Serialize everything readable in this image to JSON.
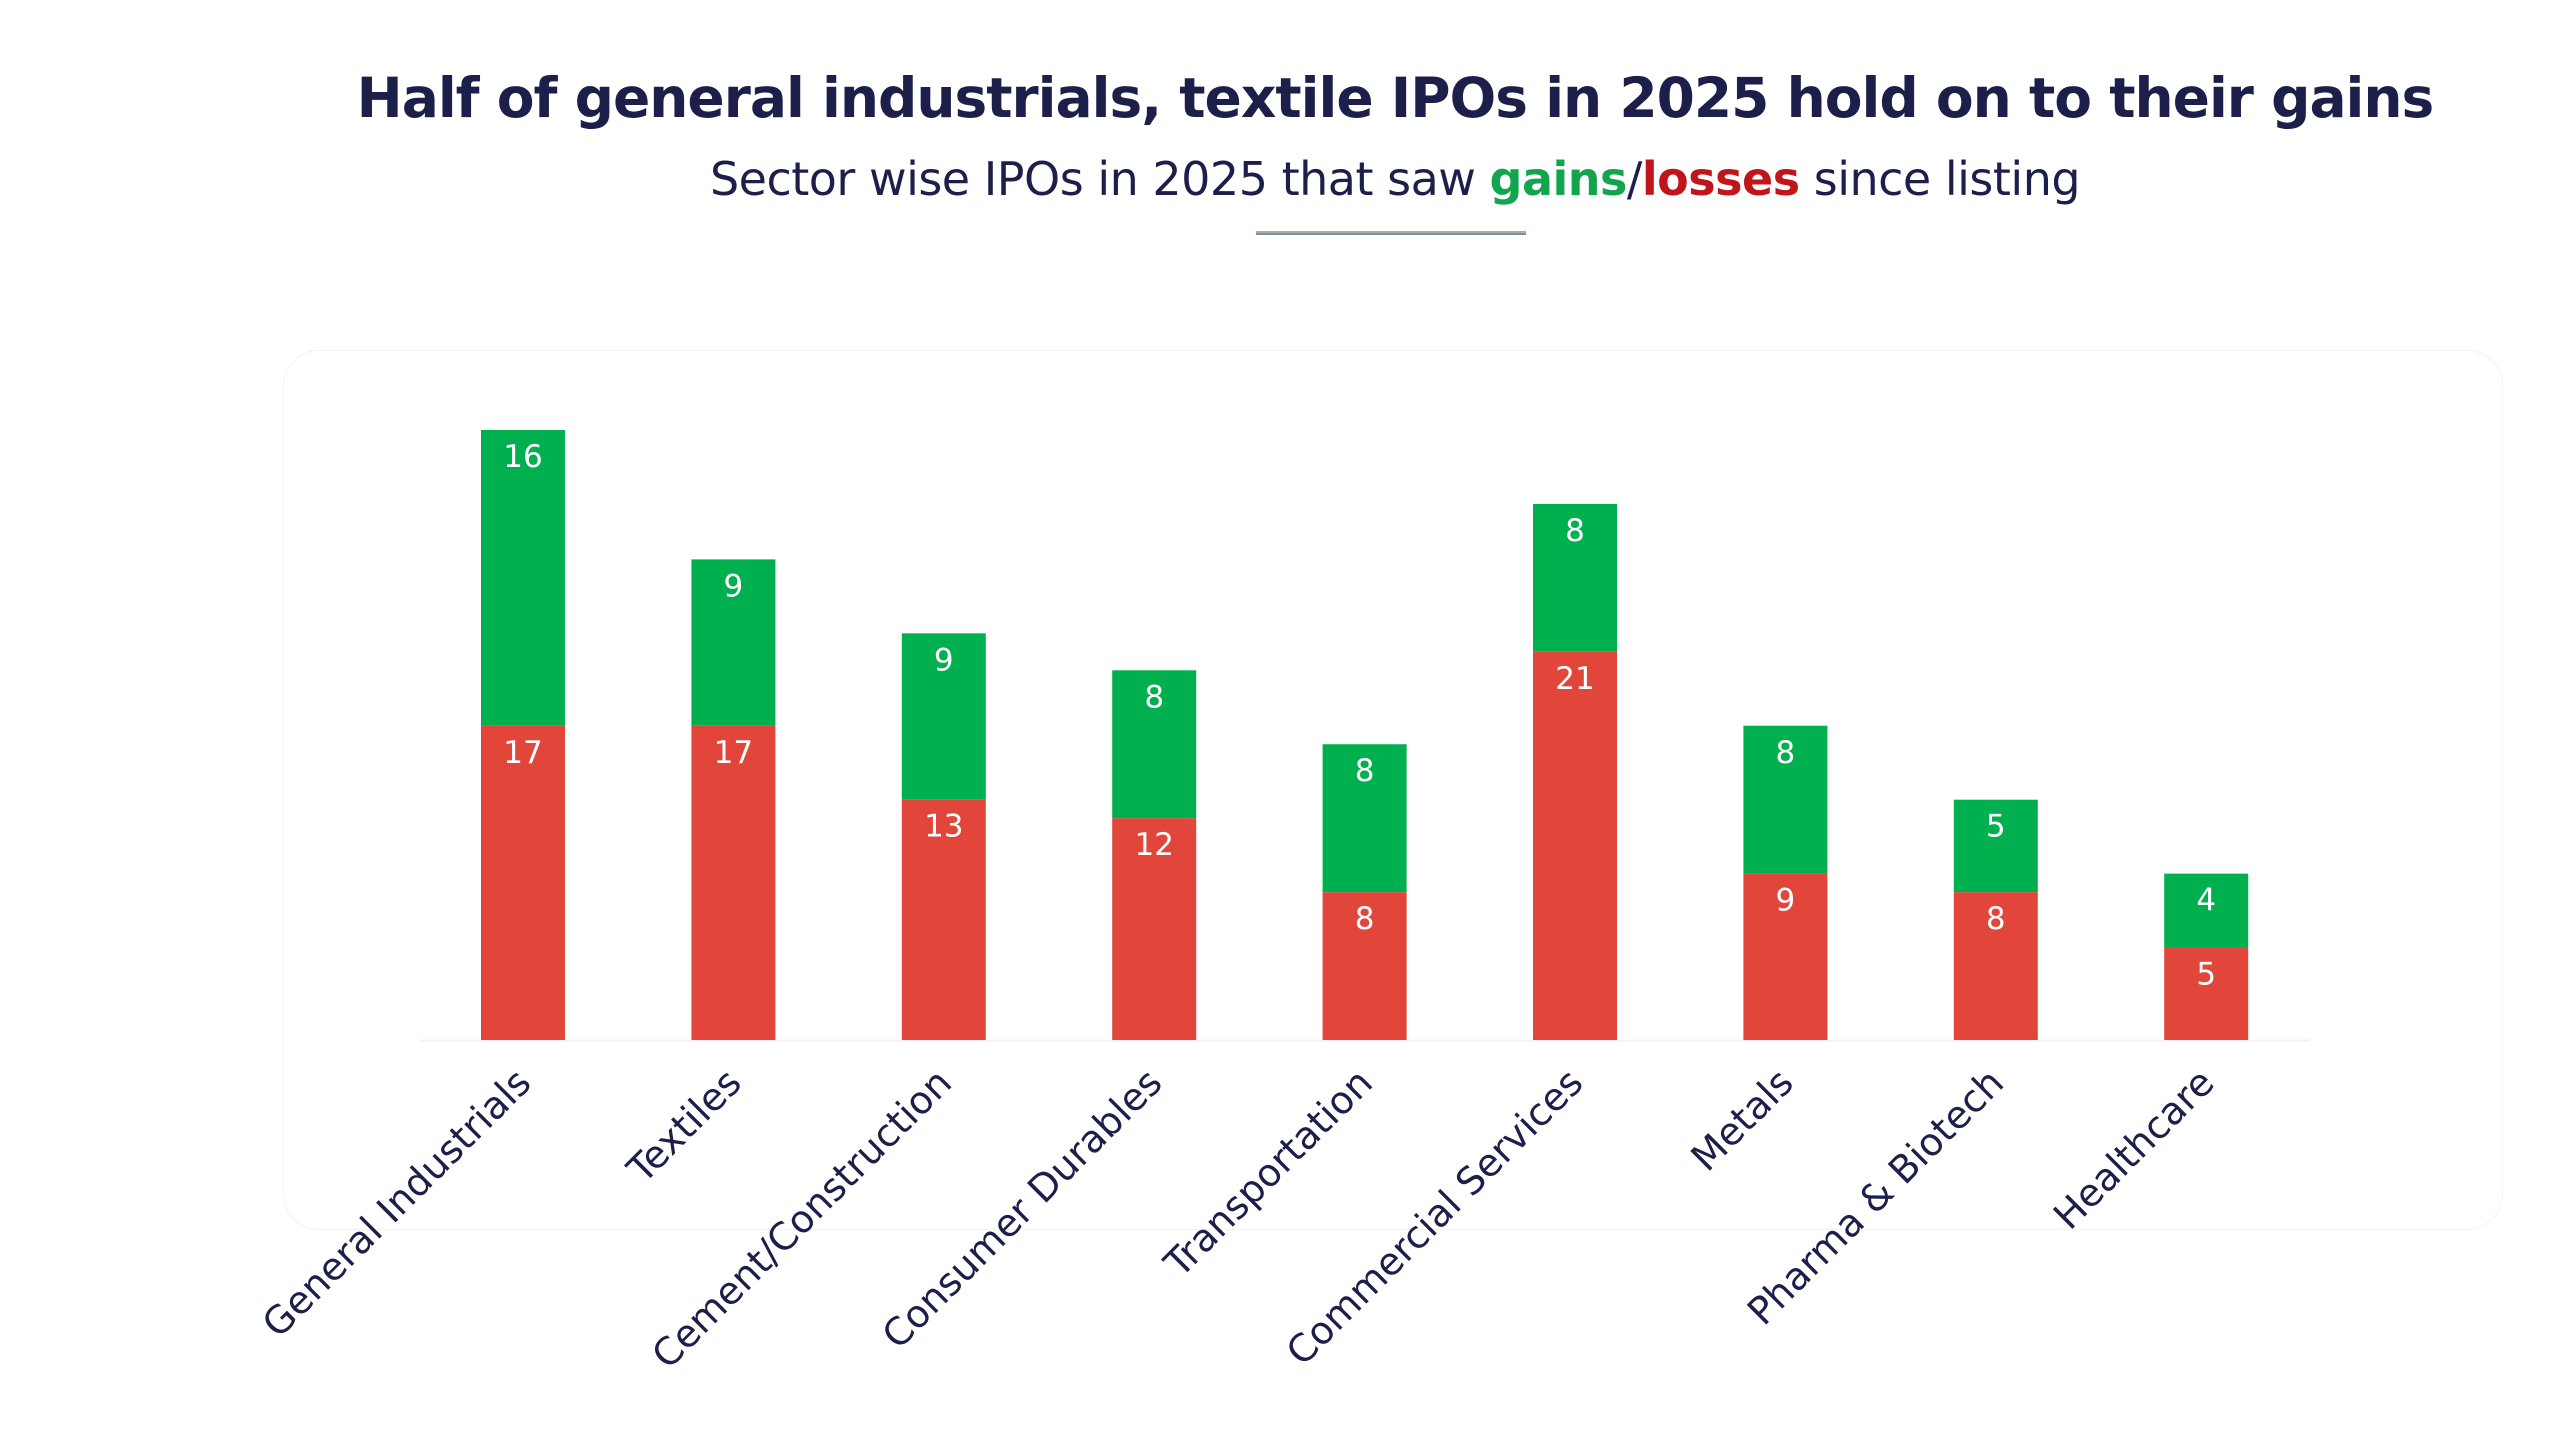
{
  "title": "Half of general industrials, textile IPOs in 2025 hold on to their gains",
  "subtitle": {
    "prefix": "Sector wise IPOs in 2025 that saw ",
    "gains_word": "gains",
    "separator": "/",
    "losses_word": "losses",
    "suffix": " since listing"
  },
  "colors": {
    "gains": "#00b04f",
    "losses": "#e2463a",
    "title": "#1c1f4a",
    "gains_text": "#12a54d",
    "losses_text": "#c0161b"
  },
  "chart_data": {
    "type": "bar",
    "stacked": true,
    "categories": [
      "General Industrials",
      "Textiles",
      "Cement/Construction",
      "Consumer Durables",
      "Transportation",
      "Commercial Services",
      "Metals",
      "Pharma & Biotech",
      "Healthcare"
    ],
    "series": [
      {
        "name": "losses",
        "color": "#e2463a",
        "values": [
          17,
          17,
          13,
          12,
          8,
          21,
          9,
          8,
          5
        ]
      },
      {
        "name": "gains",
        "color": "#00b04f",
        "values": [
          16,
          9,
          9,
          8,
          8,
          8,
          8,
          5,
          4
        ]
      }
    ],
    "data_labels": true,
    "ylim": [
      0,
      33
    ],
    "grid": false,
    "legend": "none",
    "xlabel": "",
    "ylabel": ""
  }
}
